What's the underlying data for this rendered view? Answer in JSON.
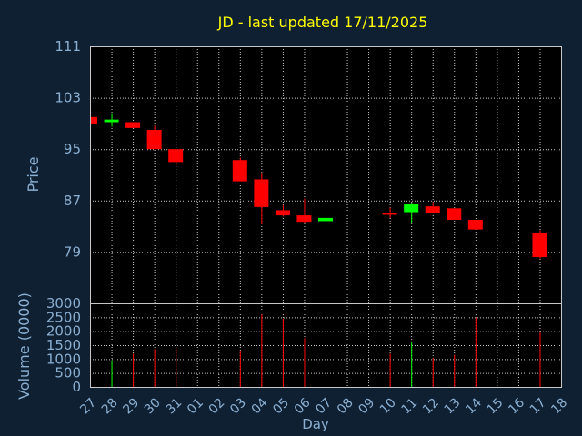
{
  "chart_data": {
    "type": "candlestick",
    "title": "JD - last updated 17/11/2025",
    "price_axis": {
      "label": "Price",
      "ticks": [
        111,
        103,
        95,
        87,
        79
      ],
      "ylim": [
        71,
        111
      ]
    },
    "volume_axis": {
      "label": "Volume (0000)",
      "ticks": [
        3000,
        2500,
        2000,
        1500,
        1000,
        500,
        0
      ],
      "ylim": [
        0,
        3000
      ]
    },
    "xlabel": "Day",
    "x_tick_labels": [
      "27",
      "28",
      "29",
      "30",
      "31",
      "01",
      "02",
      "03",
      "04",
      "05",
      "06",
      "07",
      "08",
      "09",
      "10",
      "11",
      "12",
      "13",
      "14",
      "15",
      "16",
      "17",
      "18"
    ],
    "colors": {
      "up": "#00ff00",
      "down": "#ff0000",
      "background": "#0f2033",
      "axis_text": "#8aaed0",
      "title": "#ffff00",
      "grid": "#c8c8c8"
    },
    "candles": [
      {
        "x": 0,
        "open": 100.0,
        "close": 99.0,
        "high": 100.0,
        "low": 99.0,
        "volume": 0
      },
      {
        "x": 1,
        "open": 99.2,
        "close": 99.6,
        "high": 100.6,
        "low": 98.5,
        "volume": 950
      },
      {
        "x": 2,
        "open": 99.2,
        "close": 98.3,
        "high": 99.2,
        "low": 98.3,
        "volume": 1200
      },
      {
        "x": 3,
        "open": 98.0,
        "close": 95.0,
        "high": 98.7,
        "low": 95.0,
        "volume": 1350
      },
      {
        "x": 4,
        "open": 95.0,
        "close": 93.0,
        "high": 95.0,
        "low": 92.3,
        "volume": 1400
      },
      {
        "x": 7,
        "open": 93.3,
        "close": 90.0,
        "high": 93.7,
        "low": 90.0,
        "volume": 1300
      },
      {
        "x": 8,
        "open": 90.3,
        "close": 86.0,
        "high": 91.3,
        "low": 83.3,
        "volume": 2600
      },
      {
        "x": 9,
        "open": 85.5,
        "close": 84.7,
        "high": 86.3,
        "low": 84.5,
        "volume": 2450
      },
      {
        "x": 10,
        "open": 84.7,
        "close": 83.7,
        "high": 87.3,
        "low": 83.5,
        "volume": 1750
      },
      {
        "x": 11,
        "open": 83.8,
        "close": 84.3,
        "high": 85.1,
        "low": 83.3,
        "volume": 1050
      },
      {
        "x": 14,
        "open": 85.0,
        "close": 84.8,
        "high": 85.9,
        "low": 84.3,
        "volume": 1200
      },
      {
        "x": 15,
        "open": 85.2,
        "close": 86.4,
        "high": 86.6,
        "low": 83.5,
        "volume": 1600
      },
      {
        "x": 16,
        "open": 86.1,
        "close": 85.1,
        "high": 86.8,
        "low": 85.0,
        "volume": 1050
      },
      {
        "x": 17,
        "open": 85.8,
        "close": 84.0,
        "high": 85.8,
        "low": 84.0,
        "volume": 1150
      },
      {
        "x": 18,
        "open": 84.0,
        "close": 82.5,
        "high": 84.0,
        "low": 82.5,
        "volume": 2500
      },
      {
        "x": 21,
        "open": 82.0,
        "close": 78.2,
        "high": 82.4,
        "low": 78.0,
        "volume": 1950
      }
    ]
  }
}
